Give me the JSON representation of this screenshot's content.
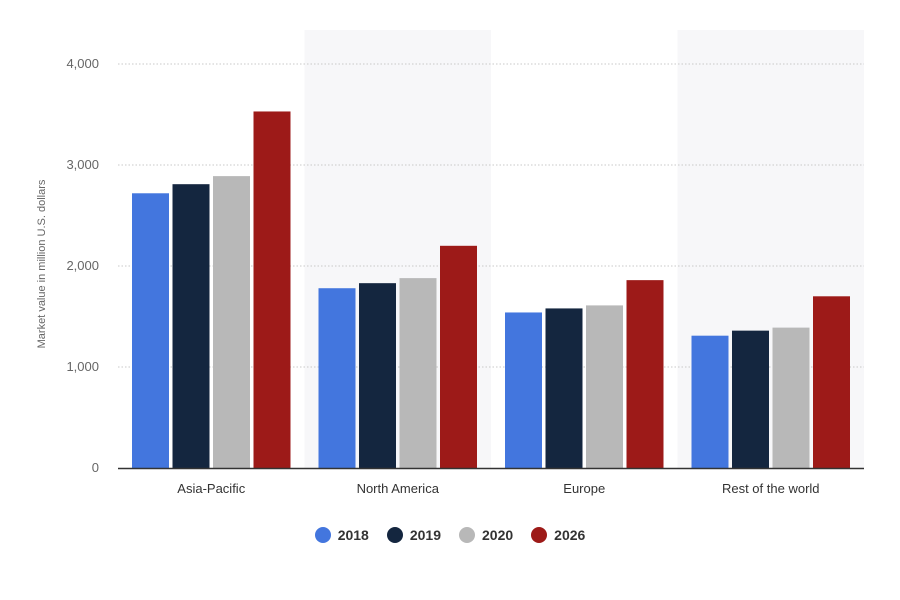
{
  "chart_data": {
    "type": "bar",
    "categories": [
      "Asia-Pacific",
      "North America",
      "Europe",
      "Rest of the world"
    ],
    "series": [
      {
        "name": "2018",
        "color": "#4376de",
        "values": [
          2720,
          1780,
          1540,
          1310
        ]
      },
      {
        "name": "2019",
        "color": "#14263f",
        "values": [
          2810,
          1830,
          1580,
          1360
        ]
      },
      {
        "name": "2020",
        "color": "#b8b8b8",
        "values": [
          2890,
          1880,
          1610,
          1390
        ]
      },
      {
        "name": "2026",
        "color": "#9d1a18",
        "values": [
          3530,
          2200,
          1860,
          1700
        ]
      }
    ],
    "ylabel": "Market value in million U.S. dollars",
    "ylim": [
      0,
      4000
    ],
    "yticks": [
      0,
      1000,
      2000,
      3000,
      4000
    ],
    "ytick_labels": [
      "0",
      "1,000",
      "2,000",
      "3,000",
      "4,000"
    ],
    "grid": true,
    "legend_position": "bottom-center"
  }
}
